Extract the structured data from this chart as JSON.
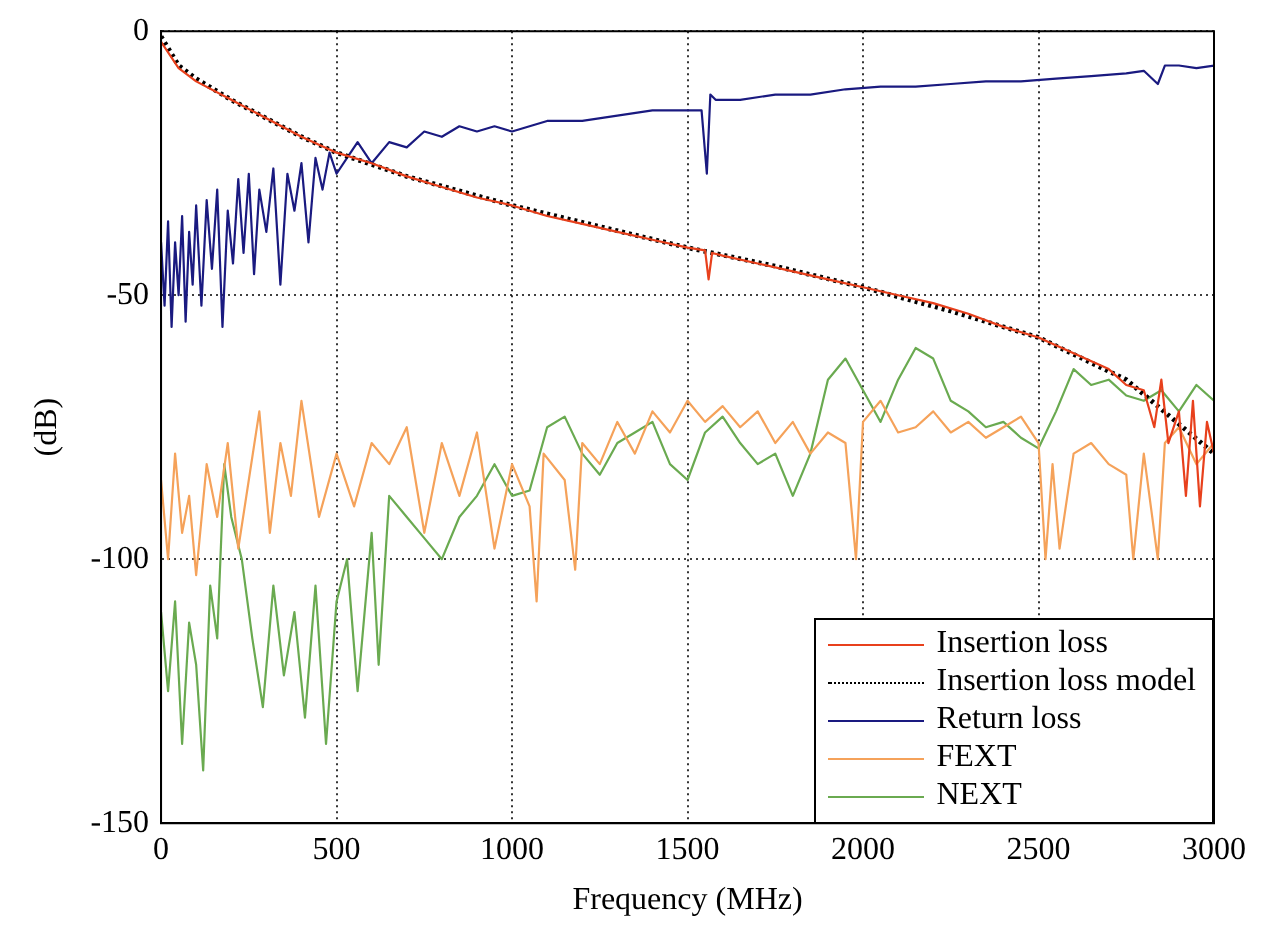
{
  "chart_data": {
    "type": "line",
    "xlabel": "Frequency (MHz)",
    "ylabel": "(dB)",
    "xlim": [
      0,
      3000
    ],
    "xticks": [
      0,
      500,
      1000,
      1500,
      2000,
      2500,
      3000
    ],
    "ylim": [
      -150,
      0
    ],
    "yticks": [
      -150,
      -100,
      -50,
      0
    ],
    "grid": true,
    "legend": "bottom right",
    "series": [
      {
        "name": "Insertion loss",
        "color": "#e8401c",
        "line_style": "solid",
        "x": [
          0,
          50,
          100,
          200,
          300,
          400,
          500,
          600,
          700,
          800,
          900,
          1000,
          1100,
          1200,
          1300,
          1400,
          1500,
          1550,
          1560,
          1570,
          1600,
          1700,
          1800,
          1900,
          2000,
          2100,
          2200,
          2300,
          2400,
          2500,
          2600,
          2700,
          2750,
          2800,
          2830,
          2850,
          2870,
          2900,
          2920,
          2940,
          2960,
          2980,
          3000
        ],
        "values": [
          -2,
          -7,
          -9.5,
          -13,
          -16.5,
          -20,
          -23,
          -25,
          -27.5,
          -29.5,
          -31.5,
          -33,
          -35,
          -36.5,
          -38,
          -39.5,
          -41,
          -41.5,
          -47,
          -42,
          -42.5,
          -44,
          -45.5,
          -47,
          -48.5,
          -50,
          -51.5,
          -53.5,
          -56,
          -58,
          -61,
          -64,
          -67,
          -68,
          -75,
          -66,
          -78,
          -72,
          -88,
          -70,
          -90,
          -74,
          -80
        ]
      },
      {
        "name": "Insertion loss model",
        "color": "#000000",
        "line_style": "dotted",
        "x": [
          0,
          50,
          100,
          200,
          300,
          400,
          500,
          700,
          1000,
          1250,
          1500,
          1750,
          2000,
          2250,
          2500,
          2750,
          3000
        ],
        "values": [
          -1,
          -6.5,
          -9,
          -13,
          -16.5,
          -20,
          -23,
          -27.5,
          -33,
          -37,
          -41,
          -44.5,
          -48.5,
          -53,
          -58,
          -66,
          -80
        ]
      },
      {
        "name": "Return loss",
        "color": "#1a1a80",
        "line_style": "solid",
        "x": [
          0,
          10,
          20,
          30,
          40,
          50,
          60,
          70,
          80,
          90,
          100,
          115,
          130,
          145,
          160,
          175,
          190,
          205,
          220,
          235,
          250,
          265,
          280,
          300,
          320,
          340,
          360,
          380,
          400,
          420,
          440,
          460,
          480,
          500,
          530,
          560,
          600,
          650,
          700,
          750,
          800,
          850,
          900,
          950,
          1000,
          1100,
          1200,
          1300,
          1400,
          1500,
          1540,
          1555,
          1565,
          1580,
          1650,
          1750,
          1850,
          1950,
          2050,
          2150,
          2250,
          2350,
          2450,
          2550,
          2650,
          2750,
          2800,
          2840,
          2860,
          2900,
          2950,
          3000
        ],
        "values": [
          -40,
          -52,
          -36,
          -56,
          -40,
          -50,
          -35,
          -55,
          -38,
          -48,
          -33,
          -52,
          -32,
          -45,
          -30,
          -56,
          -34,
          -44,
          -28,
          -42,
          -27,
          -46,
          -30,
          -38,
          -26,
          -48,
          -27,
          -34,
          -25,
          -40,
          -24,
          -30,
          -23,
          -27,
          -24,
          -21,
          -25,
          -21,
          -22,
          -19,
          -20,
          -18,
          -19,
          -18,
          -19,
          -17,
          -17,
          -16,
          -15,
          -15,
          -15,
          -27,
          -12,
          -13,
          -13,
          -12,
          -12,
          -11,
          -10.5,
          -10.5,
          -10,
          -9.5,
          -9.5,
          -9,
          -8.5,
          -8,
          -7.5,
          -10,
          -6.5,
          -6.5,
          -7,
          -6.5
        ]
      },
      {
        "name": "FEXT",
        "color": "#f5a25a",
        "line_style": "solid",
        "x": [
          0,
          20,
          40,
          60,
          80,
          100,
          130,
          160,
          190,
          220,
          250,
          280,
          310,
          340,
          370,
          400,
          450,
          500,
          550,
          600,
          650,
          700,
          750,
          800,
          850,
          900,
          950,
          1000,
          1050,
          1070,
          1090,
          1150,
          1180,
          1200,
          1250,
          1300,
          1350,
          1400,
          1450,
          1500,
          1550,
          1600,
          1650,
          1700,
          1750,
          1800,
          1850,
          1900,
          1950,
          1980,
          2000,
          2050,
          2100,
          2150,
          2200,
          2250,
          2300,
          2350,
          2400,
          2450,
          2500,
          2520,
          2540,
          2560,
          2600,
          2650,
          2700,
          2750,
          2770,
          2800,
          2840,
          2860,
          2900,
          2950,
          3000
        ],
        "values": [
          -85,
          -100,
          -80,
          -95,
          -88,
          -103,
          -82,
          -92,
          -78,
          -98,
          -85,
          -72,
          -95,
          -78,
          -88,
          -70,
          -92,
          -80,
          -90,
          -78,
          -82,
          -75,
          -95,
          -78,
          -88,
          -76,
          -98,
          -82,
          -90,
          -108,
          -80,
          -85,
          -102,
          -78,
          -82,
          -74,
          -80,
          -72,
          -76,
          -70,
          -74,
          -71,
          -75,
          -72,
          -78,
          -74,
          -80,
          -76,
          -78,
          -100,
          -74,
          -70,
          -76,
          -75,
          -72,
          -76,
          -74,
          -77,
          -75,
          -73,
          -78,
          -100,
          -82,
          -98,
          -80,
          -78,
          -82,
          -84,
          -100,
          -80,
          -100,
          -78,
          -75,
          -82,
          -78
        ]
      },
      {
        "name": "NEXT",
        "color": "#6aaa50",
        "line_style": "solid",
        "x": [
          0,
          20,
          40,
          60,
          80,
          100,
          120,
          140,
          160,
          180,
          200,
          230,
          260,
          290,
          320,
          350,
          380,
          410,
          440,
          470,
          500,
          530,
          560,
          600,
          620,
          650,
          700,
          750,
          800,
          850,
          900,
          950,
          1000,
          1050,
          1100,
          1150,
          1200,
          1250,
          1300,
          1350,
          1400,
          1450,
          1500,
          1550,
          1600,
          1650,
          1700,
          1750,
          1800,
          1850,
          1900,
          1950,
          2000,
          2050,
          2100,
          2150,
          2200,
          2250,
          2300,
          2350,
          2400,
          2450,
          2500,
          2550,
          2600,
          2650,
          2700,
          2750,
          2800,
          2850,
          2900,
          2950,
          3000
        ],
        "values": [
          -110,
          -125,
          -108,
          -135,
          -112,
          -120,
          -140,
          -105,
          -115,
          -82,
          -92,
          -100,
          -115,
          -128,
          -105,
          -122,
          -110,
          -130,
          -105,
          -135,
          -108,
          -100,
          -125,
          -95,
          -120,
          -88,
          -92,
          -96,
          -100,
          -92,
          -88,
          -82,
          -88,
          -87,
          -75,
          -73,
          -80,
          -84,
          -78,
          -76,
          -74,
          -82,
          -85,
          -76,
          -73,
          -78,
          -82,
          -80,
          -88,
          -80,
          -66,
          -62,
          -68,
          -74,
          -66,
          -60,
          -62,
          -70,
          -72,
          -75,
          -74,
          -77,
          -79,
          -72,
          -64,
          -67,
          -66,
          -69,
          -70,
          -68,
          -72,
          -67,
          -70
        ]
      }
    ]
  }
}
